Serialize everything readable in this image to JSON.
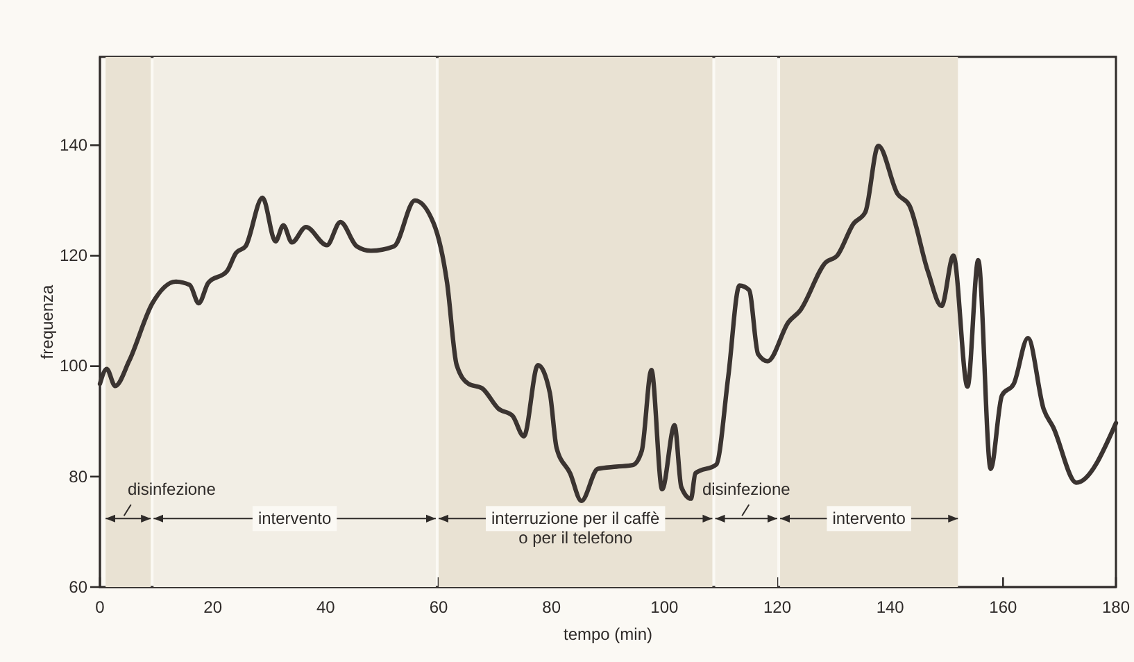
{
  "chart_data": {
    "type": "line",
    "xlabel": "tempo (min)",
    "ylabel": "frequenza",
    "xlim": [
      0,
      180
    ],
    "ylim": [
      60,
      156
    ],
    "xticks": [
      0,
      20,
      40,
      60,
      80,
      100,
      120,
      140,
      160,
      180
    ],
    "yticks": [
      60,
      80,
      100,
      120,
      140
    ],
    "grid": false,
    "marker": "none",
    "line_style": "solid",
    "series": [
      {
        "color": "#3b3431",
        "x": [
          0,
          1.2,
          2.7,
          5.2,
          9.3,
          13.4,
          15.9,
          17.5,
          19.2,
          22.5,
          24.1,
          25.8,
          28.8,
          31.1,
          32.5,
          34,
          36.5,
          40.2,
          42.6,
          45.5,
          48,
          52.1,
          55.8,
          59.1,
          61.5,
          63.2,
          65.3,
          67.7,
          70.6,
          73.1,
          75.1,
          77.6,
          79.7,
          80.9,
          83.3,
          85.3,
          88.2,
          91.5,
          94.4,
          96,
          97.7,
          99.6,
          101.8,
          103,
          104.7,
          105.5,
          109.2,
          111.3,
          113.3,
          115,
          116.6,
          118.3,
          122,
          124,
          128.6,
          130.6,
          133.5,
          135.6,
          137.9,
          141.3,
          143.4,
          146.7,
          149.1,
          151.2,
          153.7,
          155.6,
          157.8,
          159.8,
          161.9,
          164.4,
          167.2,
          168.9,
          173,
          180
        ],
        "values": [
          96.8,
          99.5,
          96.4,
          101,
          111.4,
          115.3,
          114.7,
          111.4,
          115.1,
          117.2,
          120.5,
          121.7,
          130.5,
          122.6,
          125.5,
          122.4,
          125.2,
          121.9,
          126.1,
          121.7,
          120.9,
          121.7,
          130,
          125.9,
          115.1,
          100.2,
          96.8,
          96,
          92.3,
          91,
          87.3,
          100.2,
          95.2,
          85.2,
          80.6,
          75.6,
          81.4,
          81.8,
          82.1,
          84.7,
          99.3,
          77.7,
          89.3,
          78.1,
          76,
          80.6,
          82.2,
          98,
          114.6,
          113.8,
          102.2,
          100.9,
          108,
          110,
          118.8,
          120,
          125.8,
          127.9,
          139.9,
          131.2,
          129.1,
          117.1,
          110.9,
          120,
          96.3,
          119.2,
          81.4,
          94.7,
          96.8,
          105.1,
          92.2,
          88.9,
          78.9,
          89.7
        ]
      }
    ],
    "bands": [
      {
        "axis": "x",
        "from": 1,
        "to": 9,
        "label": "disinfezione",
        "color": "#e9e2d3"
      },
      {
        "axis": "x",
        "from": 9.5,
        "to": 59.5,
        "label": "intervento",
        "color": "#f2eee5"
      },
      {
        "axis": "x",
        "from": 60,
        "to": 108.5,
        "label": "interruzione per il caffè\no per il telefono",
        "color": "#e9e2d3"
      },
      {
        "axis": "x",
        "from": 109,
        "to": 120,
        "label": "disinfezione",
        "color": "#f2eee5"
      },
      {
        "axis": "x",
        "from": 120.5,
        "to": 152,
        "label": "intervento",
        "color": "#e9e2d3"
      }
    ]
  }
}
